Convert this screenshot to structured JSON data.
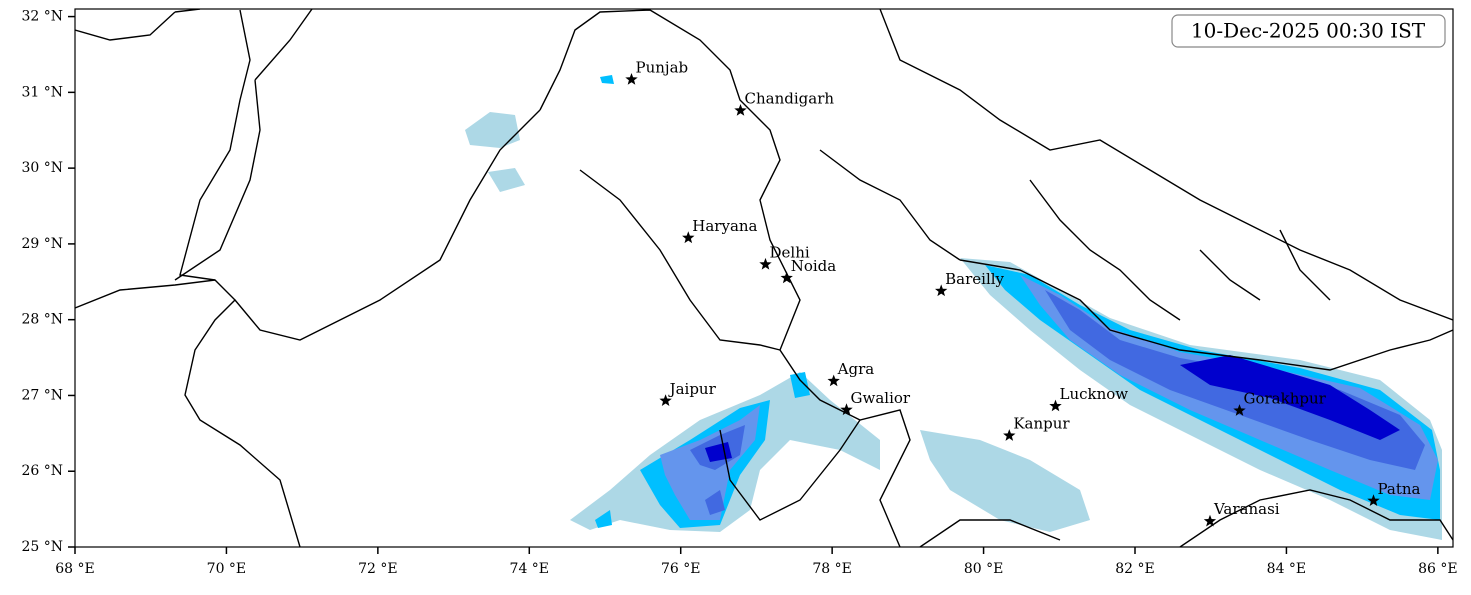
{
  "map": {
    "title": "10-Dec-2025 00:30 IST",
    "xlim": [
      68,
      86.2
    ],
    "ylim": [
      25,
      32.1
    ],
    "xticks": [
      {
        "value": 68,
        "label": "68 °E"
      },
      {
        "value": 70,
        "label": "70 °E"
      },
      {
        "value": 72,
        "label": "72 °E"
      },
      {
        "value": 74,
        "label": "74 °E"
      },
      {
        "value": 76,
        "label": "76 °E"
      },
      {
        "value": 78,
        "label": "78 °E"
      },
      {
        "value": 80,
        "label": "80 °E"
      },
      {
        "value": 82,
        "label": "82 °E"
      },
      {
        "value": 84,
        "label": "84 °E"
      },
      {
        "value": 86,
        "label": "86 °E"
      }
    ],
    "yticks": [
      {
        "value": 25,
        "label": "25 °N"
      },
      {
        "value": 26,
        "label": "26 °N"
      },
      {
        "value": 27,
        "label": "27 °N"
      },
      {
        "value": 28,
        "label": "28 °N"
      },
      {
        "value": 29,
        "label": "29 °N"
      },
      {
        "value": 30,
        "label": "30 °N"
      },
      {
        "value": 31,
        "label": "31 °N"
      },
      {
        "value": 32,
        "label": "32 °N"
      }
    ],
    "cities": [
      {
        "name": "Punjab",
        "lon": 75.35,
        "lat": 31.17
      },
      {
        "name": "Chandigarh",
        "lon": 76.79,
        "lat": 30.76
      },
      {
        "name": "Haryana",
        "lon": 76.1,
        "lat": 29.08
      },
      {
        "name": "Delhi",
        "lon": 77.12,
        "lat": 28.73
      },
      {
        "name": "Noida",
        "lon": 77.4,
        "lat": 28.55
      },
      {
        "name": "Bareilly",
        "lon": 79.44,
        "lat": 28.38
      },
      {
        "name": "Jaipur",
        "lon": 75.8,
        "lat": 26.93
      },
      {
        "name": "Agra",
        "lon": 78.02,
        "lat": 27.19
      },
      {
        "name": "Gwalior",
        "lon": 78.19,
        "lat": 26.81
      },
      {
        "name": "Lucknow",
        "lon": 80.95,
        "lat": 26.86
      },
      {
        "name": "Kanpur",
        "lon": 80.34,
        "lat": 26.47
      },
      {
        "name": "Gorakhpur",
        "lon": 83.38,
        "lat": 26.8
      },
      {
        "name": "Varanasi",
        "lon": 82.99,
        "lat": 25.34
      },
      {
        "name": "Patna",
        "lon": 85.15,
        "lat": 25.61
      }
    ]
  }
}
